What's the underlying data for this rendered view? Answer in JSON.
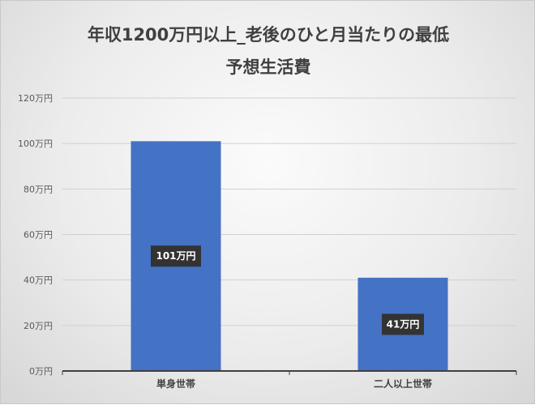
{
  "chart_data": {
    "type": "bar",
    "title_line1": "年収1200万円以上_老後のひと月当たりの最低",
    "title_line2": "予想生活費",
    "categories": [
      "単身世帯",
      "二人以上世帯"
    ],
    "values": [
      101,
      41
    ],
    "data_labels": [
      "101万円",
      "41万円"
    ],
    "ylim": [
      0,
      120
    ],
    "yticks": [
      0,
      20,
      40,
      60,
      80,
      100,
      120
    ],
    "ytick_labels": [
      "0万円",
      "20万円",
      "40万円",
      "60万円",
      "80万円",
      "100万円",
      "120万円"
    ],
    "grid": true,
    "legend": "none",
    "bar_color": "#4472c4",
    "label_bg": "#333333"
  }
}
